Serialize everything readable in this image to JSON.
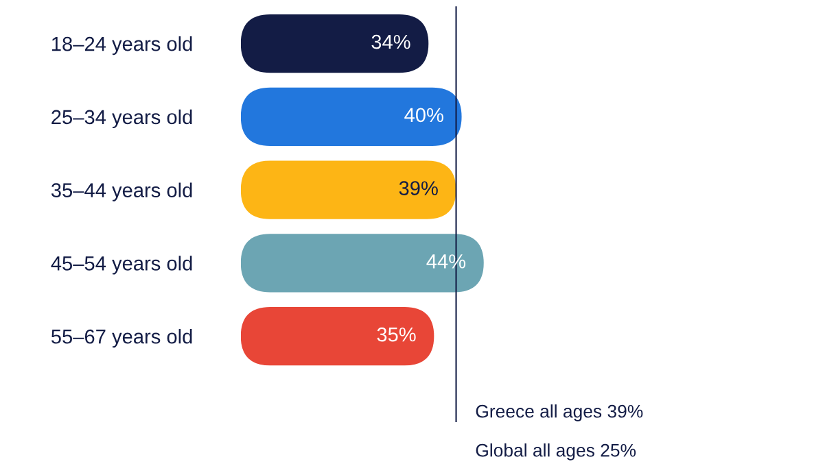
{
  "chart_data": {
    "type": "bar",
    "orientation": "horizontal",
    "categories": [
      "18–24 years old",
      "25–34 years old",
      "35–44 years old",
      "45–54 years old",
      "55–67 years old"
    ],
    "values": [
      34,
      40,
      39,
      44,
      35
    ],
    "colors": [
      "#131c45",
      "#2277dd",
      "#fdb515",
      "#6ca5b3",
      "#e84637"
    ],
    "value_labels": [
      "34%",
      "40%",
      "39%",
      "44%",
      "35%"
    ],
    "ref_lines": [
      {
        "axis": "x",
        "value": 39,
        "label": "Greece all ages 39%",
        "color": "#131c45"
      }
    ],
    "annotations": [
      "Global all ages 25%"
    ],
    "grid": false,
    "tick_labels": "y"
  }
}
